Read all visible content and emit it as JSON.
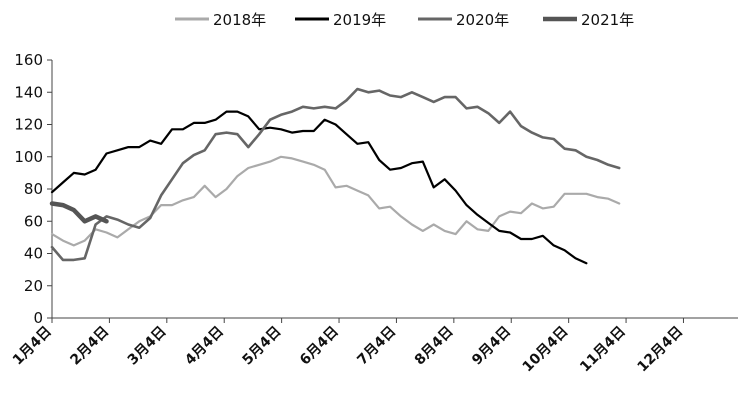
{
  "chart_data": {
    "type": "line",
    "title": "",
    "xlabel": "",
    "ylabel": "",
    "ylim": [
      0,
      160
    ],
    "yticks": [
      0,
      20,
      40,
      60,
      80,
      100,
      120,
      140,
      160
    ],
    "xlim": [
      1,
      12.95
    ],
    "xticks": [
      {
        "pos": 1,
        "label": "1月4日"
      },
      {
        "pos": 2,
        "label": "2月4日"
      },
      {
        "pos": 3,
        "label": "3月4日"
      },
      {
        "pos": 4,
        "label": "4月4日"
      },
      {
        "pos": 5,
        "label": "5月4日"
      },
      {
        "pos": 6,
        "label": "6月4日"
      },
      {
        "pos": 7,
        "label": "7月4日"
      },
      {
        "pos": 8,
        "label": "8月4日"
      },
      {
        "pos": 9,
        "label": "9月4日"
      },
      {
        "pos": 10,
        "label": "10月4日"
      },
      {
        "pos": 11,
        "label": "11月4日"
      },
      {
        "pos": 12,
        "label": "12月4日"
      }
    ],
    "grid": false,
    "legend_position": "top",
    "series": [
      {
        "name": "2018年",
        "color": "#aaaaaa",
        "width": 2.2,
        "points": [
          [
            1.0,
            52
          ],
          [
            1.19,
            48
          ],
          [
            1.38,
            45
          ],
          [
            1.57,
            48
          ],
          [
            1.76,
            55
          ],
          [
            1.95,
            53
          ],
          [
            2.14,
            50
          ],
          [
            2.33,
            55
          ],
          [
            2.52,
            60
          ],
          [
            2.71,
            63
          ],
          [
            2.9,
            70
          ],
          [
            3.09,
            70
          ],
          [
            3.28,
            73
          ],
          [
            3.47,
            75
          ],
          [
            3.66,
            82
          ],
          [
            3.85,
            75
          ],
          [
            4.04,
            80
          ],
          [
            4.23,
            88
          ],
          [
            4.42,
            93
          ],
          [
            4.61,
            95
          ],
          [
            4.8,
            97
          ],
          [
            4.99,
            100
          ],
          [
            5.18,
            99
          ],
          [
            5.37,
            97
          ],
          [
            5.56,
            95
          ],
          [
            5.75,
            92
          ],
          [
            5.94,
            81
          ],
          [
            6.13,
            82
          ],
          [
            6.32,
            79
          ],
          [
            6.51,
            76
          ],
          [
            6.7,
            68
          ],
          [
            6.89,
            69
          ],
          [
            7.08,
            63
          ],
          [
            7.27,
            58
          ],
          [
            7.46,
            54
          ],
          [
            7.65,
            58
          ],
          [
            7.84,
            54
          ],
          [
            8.03,
            52
          ],
          [
            8.22,
            60
          ],
          [
            8.41,
            55
          ],
          [
            8.6,
            54
          ],
          [
            8.79,
            63
          ],
          [
            8.98,
            66
          ],
          [
            9.17,
            65
          ],
          [
            9.36,
            71
          ],
          [
            9.55,
            68
          ],
          [
            9.74,
            69
          ],
          [
            9.93,
            77
          ],
          [
            10.12,
            77
          ],
          [
            10.31,
            77
          ],
          [
            10.5,
            75
          ],
          [
            10.69,
            74
          ],
          [
            10.88,
            71
          ]
        ]
      },
      {
        "name": "2019年",
        "color": "#000000",
        "width": 2.2,
        "points": [
          [
            1.0,
            78
          ],
          [
            1.19,
            84
          ],
          [
            1.38,
            90
          ],
          [
            1.57,
            89
          ],
          [
            1.76,
            92
          ],
          [
            1.95,
            102
          ],
          [
            2.14,
            104
          ],
          [
            2.33,
            106
          ],
          [
            2.52,
            106
          ],
          [
            2.71,
            110
          ],
          [
            2.9,
            108
          ],
          [
            3.09,
            117
          ],
          [
            3.28,
            117
          ],
          [
            3.47,
            121
          ],
          [
            3.66,
            121
          ],
          [
            3.85,
            123
          ],
          [
            4.04,
            128
          ],
          [
            4.23,
            128
          ],
          [
            4.42,
            125
          ],
          [
            4.61,
            117
          ],
          [
            4.8,
            118
          ],
          [
            4.99,
            117
          ],
          [
            5.18,
            115
          ],
          [
            5.37,
            116
          ],
          [
            5.56,
            116
          ],
          [
            5.75,
            123
          ],
          [
            5.94,
            120
          ],
          [
            6.13,
            114
          ],
          [
            6.32,
            108
          ],
          [
            6.51,
            109
          ],
          [
            6.7,
            98
          ],
          [
            6.89,
            92
          ],
          [
            7.08,
            93
          ],
          [
            7.27,
            96
          ],
          [
            7.46,
            97
          ],
          [
            7.65,
            81
          ],
          [
            7.84,
            86
          ],
          [
            8.03,
            79
          ],
          [
            8.22,
            70
          ],
          [
            8.41,
            64
          ],
          [
            8.6,
            59
          ],
          [
            8.79,
            54
          ],
          [
            8.98,
            53
          ],
          [
            9.17,
            49
          ],
          [
            9.36,
            49
          ],
          [
            9.55,
            51
          ],
          [
            9.74,
            45
          ],
          [
            9.93,
            42
          ],
          [
            10.12,
            37
          ],
          [
            10.31,
            34
          ]
        ]
      },
      {
        "name": "2020年",
        "color": "#666666",
        "width": 2.6,
        "points": [
          [
            1.0,
            44
          ],
          [
            1.19,
            36
          ],
          [
            1.38,
            36
          ],
          [
            1.57,
            37
          ],
          [
            1.76,
            58
          ],
          [
            1.95,
            63
          ],
          [
            2.14,
            61
          ],
          [
            2.33,
            58
          ],
          [
            2.52,
            56
          ],
          [
            2.71,
            62
          ],
          [
            2.9,
            76
          ],
          [
            3.09,
            86
          ],
          [
            3.28,
            96
          ],
          [
            3.47,
            101
          ],
          [
            3.66,
            104
          ],
          [
            3.85,
            114
          ],
          [
            4.04,
            115
          ],
          [
            4.23,
            114
          ],
          [
            4.42,
            106
          ],
          [
            4.61,
            114
          ],
          [
            4.8,
            123
          ],
          [
            4.99,
            126
          ],
          [
            5.18,
            128
          ],
          [
            5.37,
            131
          ],
          [
            5.56,
            130
          ],
          [
            5.75,
            131
          ],
          [
            5.94,
            130
          ],
          [
            6.13,
            135
          ],
          [
            6.32,
            142
          ],
          [
            6.51,
            140
          ],
          [
            6.7,
            141
          ],
          [
            6.89,
            138
          ],
          [
            7.08,
            137
          ],
          [
            7.27,
            140
          ],
          [
            7.46,
            137
          ],
          [
            7.65,
            134
          ],
          [
            7.84,
            137
          ],
          [
            8.03,
            137
          ],
          [
            8.22,
            130
          ],
          [
            8.41,
            131
          ],
          [
            8.6,
            127
          ],
          [
            8.79,
            121
          ],
          [
            8.98,
            128
          ],
          [
            9.17,
            119
          ],
          [
            9.36,
            115
          ],
          [
            9.55,
            112
          ],
          [
            9.74,
            111
          ],
          [
            9.93,
            105
          ],
          [
            10.12,
            104
          ],
          [
            10.31,
            100
          ],
          [
            10.5,
            98
          ],
          [
            10.69,
            95
          ],
          [
            10.88,
            93
          ]
        ]
      },
      {
        "name": "2021年",
        "color": "#555555",
        "width": 4.5,
        "points": [
          [
            1.0,
            71
          ],
          [
            1.19,
            70
          ],
          [
            1.38,
            67
          ],
          [
            1.57,
            60
          ],
          [
            1.76,
            63
          ],
          [
            1.95,
            60
          ]
        ]
      }
    ]
  }
}
